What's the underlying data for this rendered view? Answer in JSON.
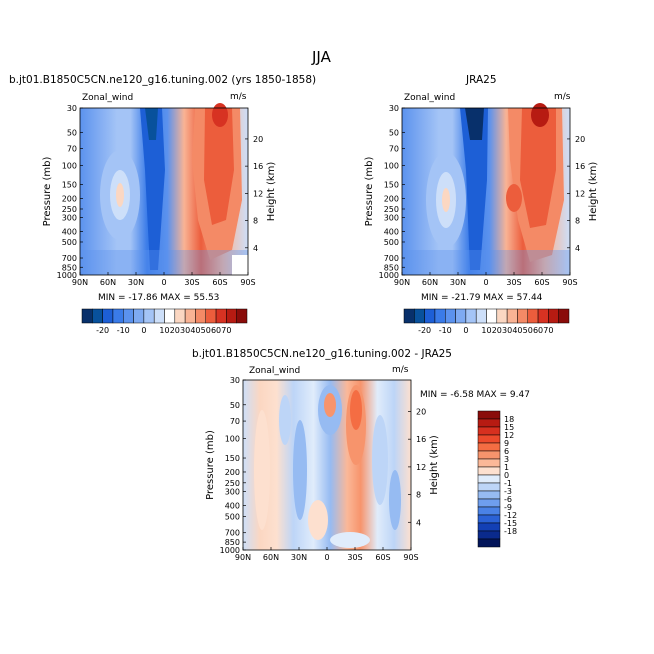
{
  "figure": {
    "title": "JJA",
    "panel_left_title": "b.jt01.B1850C5CN.ne120_g16.tuning.002 (yrs 1850-1858)",
    "panel_right_title": "JRA25",
    "panel_diff_title": "b.jt01.B1850C5CN.ne120_g16.tuning.002 - JRA25",
    "variable_label": "Zonal_wind",
    "units_label": "m/s",
    "left_stats": "MIN = -17.86   MAX =  55.53",
    "right_stats": "MIN = -21.79   MAX =  57.44",
    "diff_stats": "MIN =  -6.58   MAX =   9.47",
    "ylabel_left": "Pressure (mb)",
    "ylabel_right": "Height (km)"
  },
  "chart_data": [
    {
      "type": "heatmap",
      "title": "b.jt01.B1850C5CN.ne120_g16.tuning.002 (yrs 1850-1858)",
      "x_tick_labels": [
        "90N",
        "60N",
        "30N",
        "0",
        "30S",
        "60S",
        "90S"
      ],
      "y_tick_labels": [
        "30",
        "50",
        "70",
        "100",
        "150",
        "200",
        "250",
        "300",
        "400",
        "500",
        "700",
        "850",
        "1000"
      ],
      "y2_tick_labels": [
        "4",
        "8",
        "12",
        "16",
        "20"
      ],
      "xlabel": "",
      "ylabel": "Pressure (mb)",
      "y2label": "Height (km)",
      "min": -17.86,
      "max": 55.53,
      "units": "m/s"
    },
    {
      "type": "heatmap",
      "title": "JRA25",
      "x_tick_labels": [
        "90N",
        "60N",
        "30N",
        "0",
        "30S",
        "60S",
        "90S"
      ],
      "y_tick_labels": [
        "30",
        "50",
        "70",
        "100",
        "150",
        "200",
        "250",
        "300",
        "400",
        "500",
        "700",
        "850",
        "1000"
      ],
      "y2_tick_labels": [
        "4",
        "8",
        "12",
        "16",
        "20"
      ],
      "xlabel": "",
      "ylabel": "Pressure (mb)",
      "y2label": "Height (km)",
      "min": -21.79,
      "max": 57.44,
      "units": "m/s"
    },
    {
      "type": "heatmap",
      "title": "b.jt01.B1850C5CN.ne120_g16.tuning.002 - JRA25",
      "x_tick_labels": [
        "90N",
        "60N",
        "30N",
        "0",
        "30S",
        "60S",
        "90S"
      ],
      "y_tick_labels": [
        "30",
        "50",
        "70",
        "100",
        "150",
        "200",
        "250",
        "300",
        "400",
        "500",
        "700",
        "850",
        "1000"
      ],
      "y2_tick_labels": [
        "4",
        "8",
        "12",
        "16",
        "20"
      ],
      "xlabel": "",
      "ylabel": "Pressure (mb)",
      "y2label": "Height (km)",
      "min": -6.58,
      "max": 9.47,
      "units": "m/s"
    }
  ],
  "colorbar_abs": {
    "labels": [
      "-20",
      "-10",
      "0",
      "10",
      "20",
      "30",
      "40",
      "50",
      "60",
      "70"
    ],
    "colors": [
      "#08306b",
      "#08519c",
      "#1d5fd6",
      "#3a7be8",
      "#5b92ee",
      "#7eaaf2",
      "#a4c4f6",
      "#cddff9",
      "#ffffff",
      "#fbd7c2",
      "#f9b394",
      "#f48a66",
      "#ec5d3c",
      "#d73222",
      "#b71b12",
      "#8a0c0a"
    ]
  },
  "colorbar_diff": {
    "labels": [
      "18",
      "15",
      "12",
      "9",
      "6",
      "3",
      "1",
      "0",
      "-1",
      "-3",
      "-6",
      "-9",
      "-12",
      "-15",
      "-18"
    ],
    "colors": [
      "#8a0c0a",
      "#b71b12",
      "#d7301f",
      "#ec4a2c",
      "#f46d43",
      "#f7946c",
      "#fbb898",
      "#fde0cf",
      "#e0ecfb",
      "#bdd5f7",
      "#96bbf2",
      "#6e9eee",
      "#4a82e6",
      "#2b62d6",
      "#1340b5",
      "#0a2a8c",
      "#03155a"
    ]
  }
}
